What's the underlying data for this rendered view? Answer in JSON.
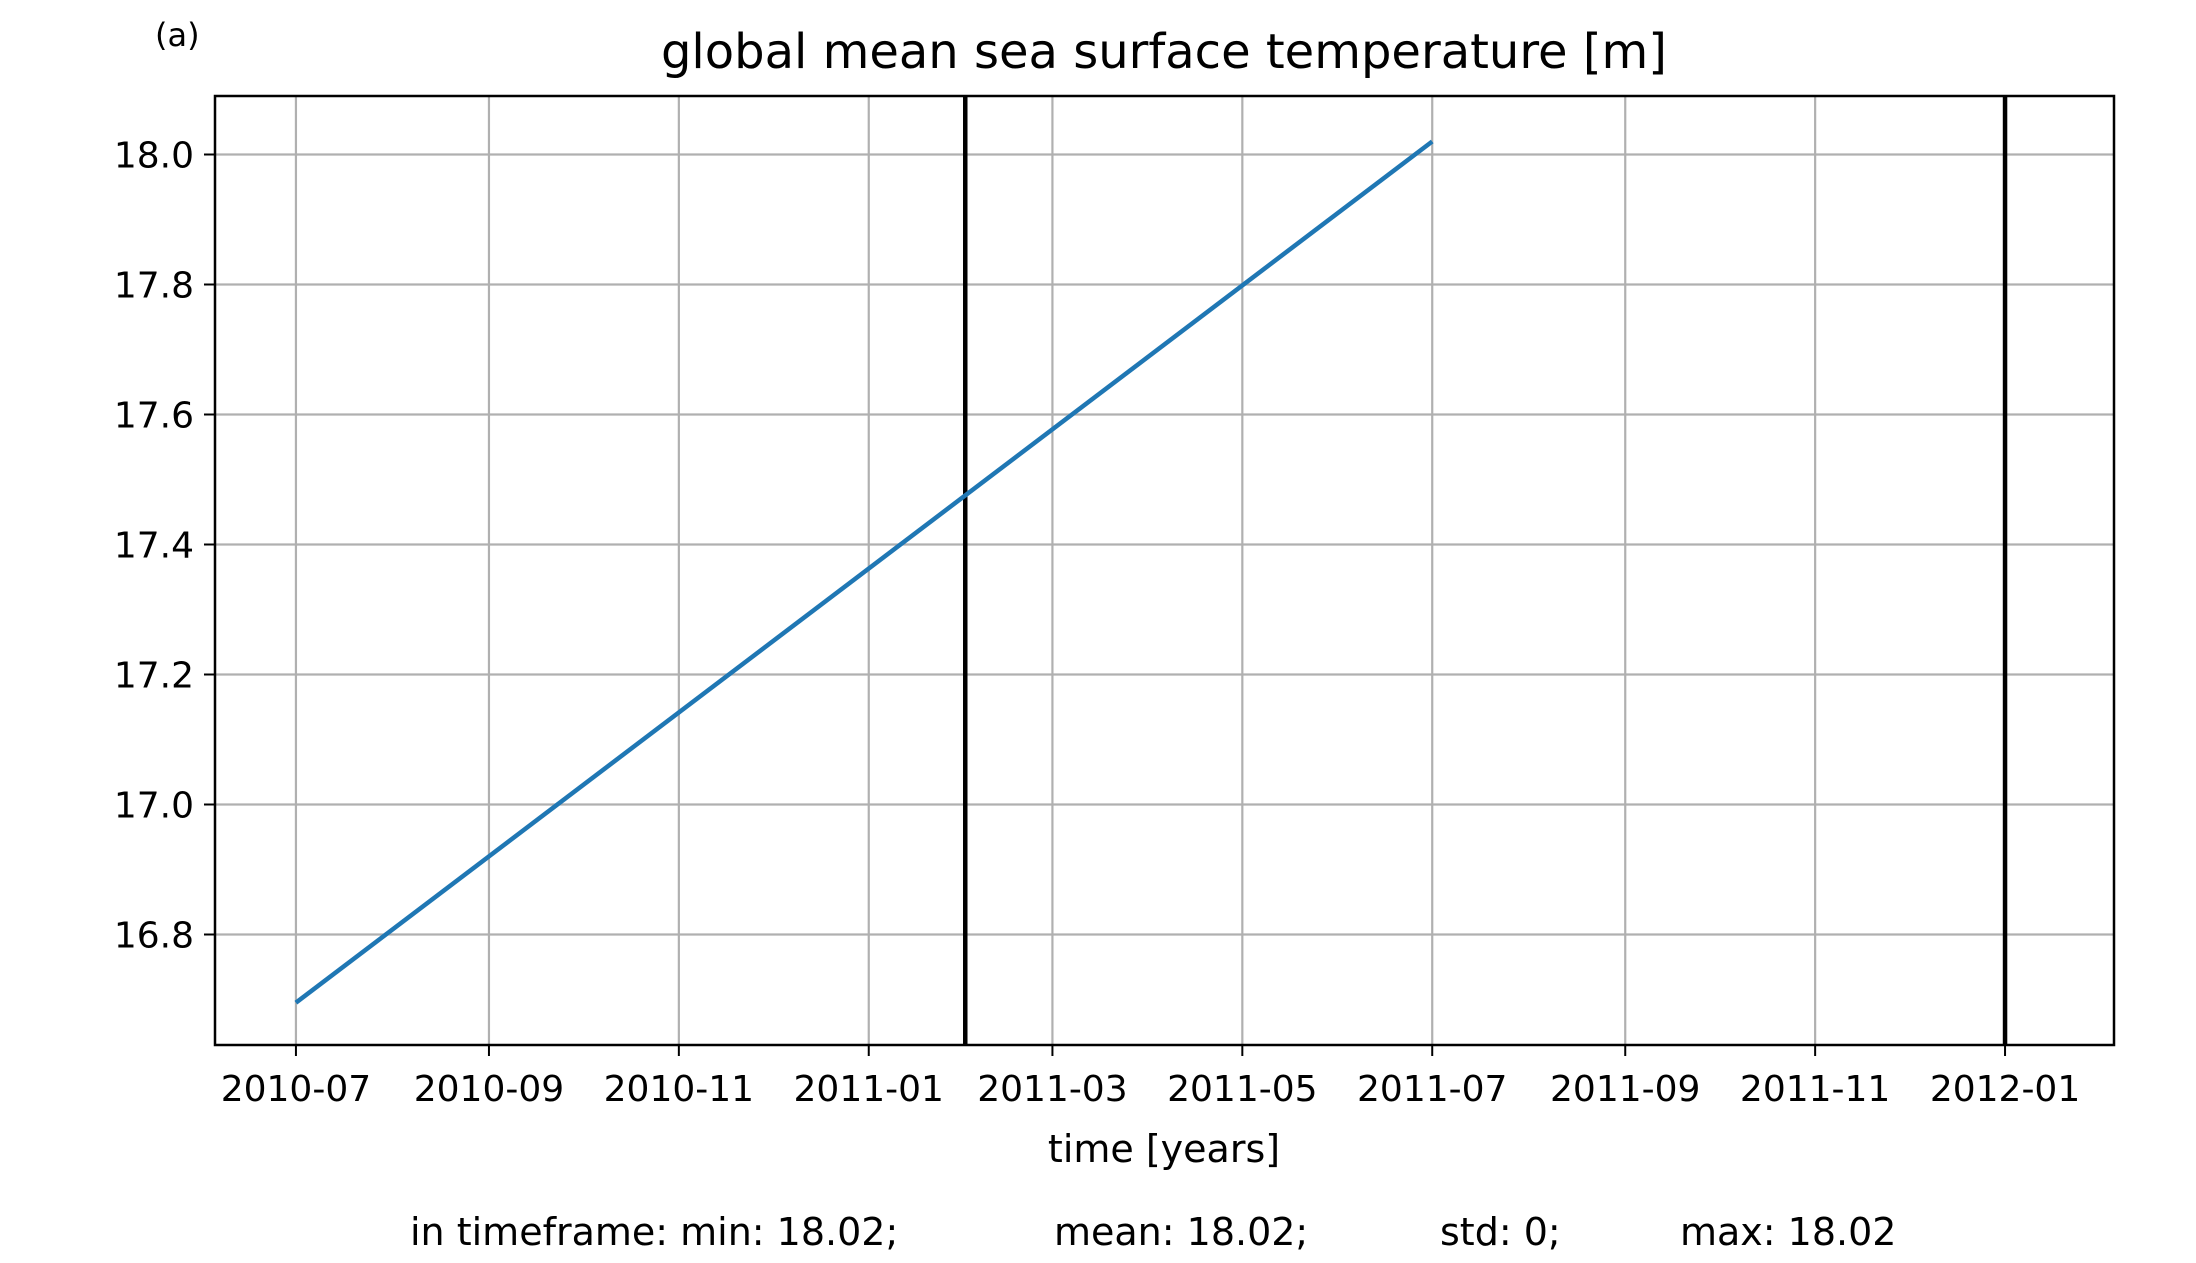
{
  "panel_label": "(a)",
  "chart_data": {
    "type": "line",
    "title": "global mean sea surface temperature [m]",
    "xlabel": "time [years]",
    "ylabel": "",
    "x_type": "date",
    "xlim": [
      "2010-06-05",
      "2012-02-05"
    ],
    "ylim": [
      16.63,
      18.09
    ],
    "grid": true,
    "x_ticks": [
      "2010-07-01",
      "2010-09-01",
      "2010-11-01",
      "2011-01-01",
      "2011-03-01",
      "2011-05-01",
      "2011-07-01",
      "2011-09-01",
      "2011-11-01",
      "2012-01-01"
    ],
    "x_tick_labels": [
      "2010-07",
      "2010-09",
      "2010-11",
      "2011-01",
      "2011-03",
      "2011-05",
      "2011-07",
      "2011-09",
      "2011-11",
      "2012-01"
    ],
    "y_ticks": [
      16.8,
      17.0,
      17.2,
      17.4,
      17.6,
      17.8,
      18.0
    ],
    "y_tick_labels": [
      "16.8",
      "17.0",
      "17.2",
      "17.4",
      "17.6",
      "17.8",
      "18.0"
    ],
    "series": [
      {
        "color": "#1f77b4",
        "x": [
          "2010-07-01",
          "2011-07-01"
        ],
        "y": [
          16.695,
          18.02
        ]
      }
    ],
    "vlines": [
      {
        "x": "2011-02-01",
        "color": "#000000"
      },
      {
        "x": "2012-01-01",
        "color": "#000000"
      }
    ]
  },
  "stats": {
    "prefix": "in timeframe: min: 18.02;",
    "mean": "mean: 18.02;",
    "std": "std: 0;",
    "max": "max: 18.02"
  }
}
